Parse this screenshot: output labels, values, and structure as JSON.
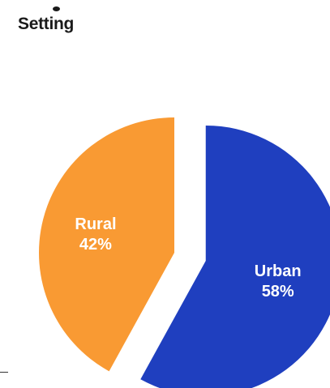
{
  "chart_title": "Setting",
  "chart_data": {
    "type": "pie",
    "title": "Setting",
    "slices": [
      {
        "label": "Urban",
        "value": 58,
        "value_label": "58%",
        "color": "#1f3fbf",
        "exploded": true
      },
      {
        "label": "Rural",
        "value": 42,
        "value_label": "42%",
        "color": "#f99a33",
        "exploded": false
      }
    ],
    "start_angle_deg": 0,
    "direction": "clockwise",
    "legend": "none"
  }
}
